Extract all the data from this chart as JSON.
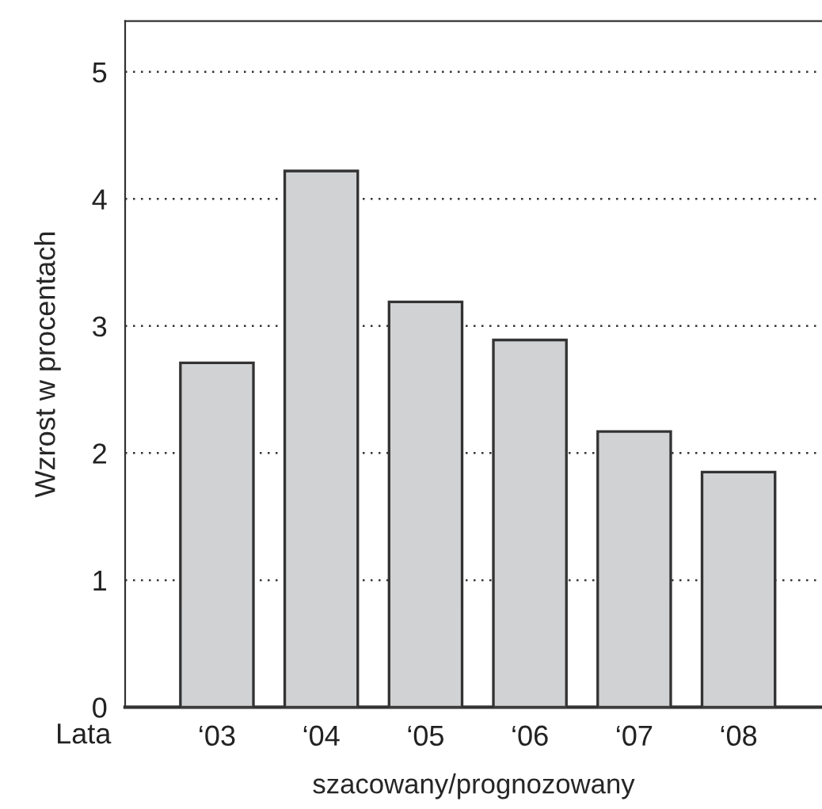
{
  "chart_data": {
    "type": "bar",
    "categories": [
      "‘03",
      "‘04",
      "‘05",
      "‘06",
      "‘07",
      "‘08"
    ],
    "values": [
      2.71,
      4.22,
      3.19,
      2.89,
      2.17,
      1.85
    ],
    "color": "#d1d2d4",
    "ylabel": "Wzrost w procentach",
    "xlabel": "szacowany/prognozowany",
    "annotations": [
      "Lata"
    ],
    "ylim": [
      0,
      5.4
    ],
    "yticks": [
      0,
      1,
      2,
      3,
      4,
      5
    ],
    "grid": "y"
  }
}
